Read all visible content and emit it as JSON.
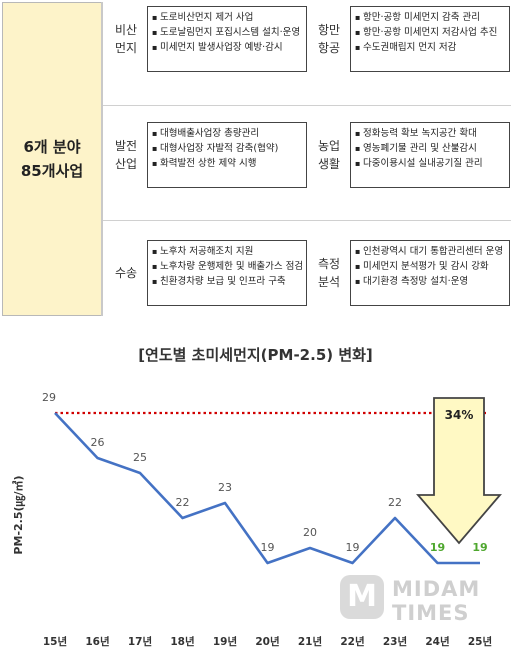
{
  "summary": {
    "line1": "6개 분야",
    "line2": "85개사업"
  },
  "rows": [
    {
      "left": {
        "cat1": "비산",
        "cat2": "먼지",
        "items": [
          "도로비산먼지 제거 사업",
          "도로날림먼지 포집시스템 설치·운영",
          "미세먼지 발생사업장 예방·감시"
        ]
      },
      "right": {
        "cat1": "항만",
        "cat2": "항공",
        "items": [
          "항만·공항 미세먼지 감축 관리",
          "항만·공항 미세먼지 저감사업 추진",
          "수도권매립지 먼지 저감"
        ]
      }
    },
    {
      "left": {
        "cat1": "발전",
        "cat2": "산업",
        "items": [
          "대형배출사업장 총량관리",
          "대형사업장 자발적 감축(협약)",
          "화력발전 상한 제약 시행"
        ]
      },
      "right": {
        "cat1": "농업",
        "cat2": "생활",
        "items": [
          "정화능력 확보 녹지공간 확대",
          "영농폐기물 관리 및 산불감시",
          "다중이용시설 실내공기질 관리"
        ]
      }
    },
    {
      "left": {
        "cat1": "수송",
        "cat2": "",
        "items": [
          "노후차 저공해조치 지원",
          "노후차량 운행제한 및 배출가스 점검",
          "친환경차량 보급 및 인프라 구축"
        ]
      },
      "right": {
        "cat1": "측정",
        "cat2": "분석",
        "items": [
          "인천광역시 대기 통합관리센터 운영",
          "미세먼지 분석평가 및 감시 강화",
          "대기환경 측정망 설치·운영"
        ]
      }
    }
  ],
  "chart_data": {
    "type": "line",
    "title": "[연도별 초미세먼지(PM-2.5) 변화]",
    "ylabel": "PM-2.5(㎍/㎥)",
    "xlabel": "",
    "categories": [
      "15년",
      "16년",
      "17년",
      "18년",
      "19년",
      "20년",
      "21년",
      "22년",
      "23년",
      "24년",
      "25년"
    ],
    "values": [
      29,
      26,
      25,
      22,
      23,
      19,
      20,
      19,
      22,
      19,
      19
    ],
    "ylim": [
      14,
      30
    ],
    "reference_line": {
      "value": 29,
      "style": "red-dotted"
    },
    "highlight_indices": [
      9,
      10
    ],
    "annotation": {
      "label": "34%",
      "shape": "down-arrow"
    },
    "colors": {
      "line": "#4472c4",
      "label": "#555555",
      "highlight": "#4ea72e",
      "reference": "#d00000",
      "arrow_fill": "#fff9c4",
      "arrow_stroke": "#444444"
    }
  },
  "watermark": {
    "logo": "M",
    "line1": "MIDAM",
    "line2": "TIMES"
  }
}
